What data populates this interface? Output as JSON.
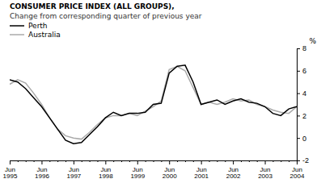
{
  "chart_data": {
    "type": "line",
    "title": "CONSUMER PRICE INDEX (ALL GROUPS),",
    "subtitle": "Change from corresponding quarter of previous year",
    "y_label": "%",
    "categories": [
      "Jun\n1995",
      null,
      null,
      null,
      "Jun\n1996",
      null,
      null,
      null,
      "Jun\n1997",
      null,
      null,
      null,
      "Jun\n1998",
      null,
      null,
      null,
      "Jun\n1999",
      null,
      null,
      null,
      "Jun\n2000",
      null,
      null,
      null,
      "Jun\n2001",
      null,
      null,
      null,
      "Jun\n2002",
      null,
      null,
      null,
      "Jun\n2003",
      null,
      null,
      null,
      "Jun\n2004"
    ],
    "series": [
      {
        "name": "Perth",
        "color": "#000000",
        "values": [
          5.2,
          5.0,
          4.4,
          3.6,
          2.8,
          1.8,
          0.8,
          -0.2,
          -0.5,
          -0.4,
          0.3,
          1.0,
          1.8,
          2.3,
          2.0,
          2.2,
          2.2,
          2.3,
          3.0,
          3.1,
          5.8,
          6.4,
          6.5,
          5.0,
          3.0,
          3.2,
          3.4,
          3.0,
          3.3,
          3.5,
          3.2,
          3.1,
          2.8,
          2.2,
          2.0,
          2.6,
          2.8
        ]
      },
      {
        "name": "Australia",
        "color": "#aaaaaa",
        "values": [
          4.8,
          5.2,
          4.9,
          4.0,
          3.0,
          1.8,
          0.8,
          0.2,
          0.0,
          -0.1,
          0.5,
          1.2,
          1.8,
          2.0,
          2.0,
          2.2,
          2.0,
          2.4,
          2.8,
          3.3,
          6.1,
          6.4,
          6.0,
          4.5,
          3.0,
          3.2,
          3.0,
          3.2,
          3.5,
          3.3,
          3.4,
          3.0,
          2.8,
          2.5,
          2.3,
          2.2,
          2.8
        ]
      }
    ],
    "ylim": [
      -2,
      8
    ],
    "yticks": [
      -2,
      0,
      2,
      4,
      6,
      8
    ],
    "grid": false,
    "legend": "top-left"
  }
}
